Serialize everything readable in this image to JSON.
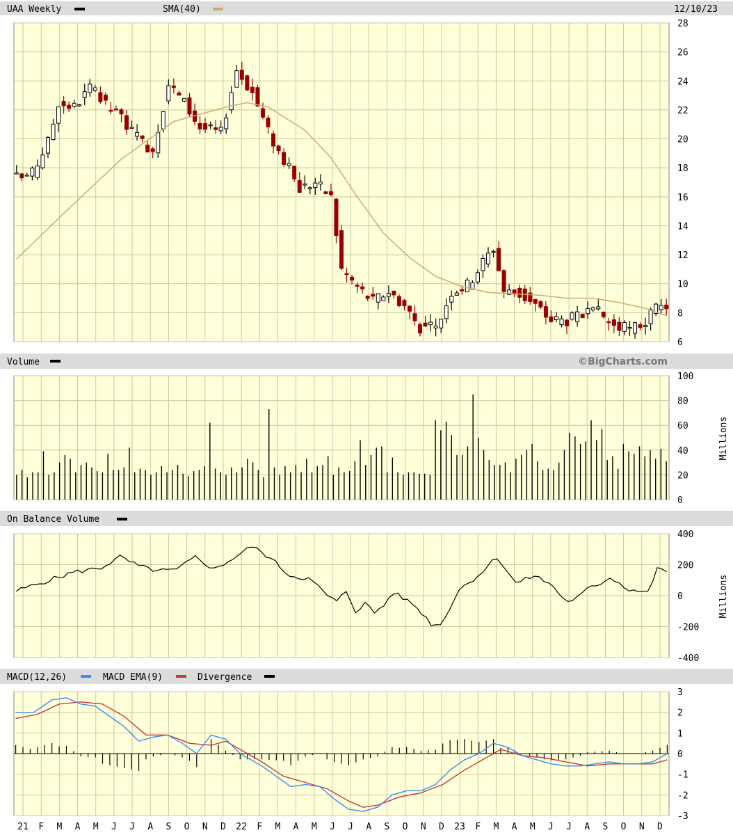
{
  "header": {
    "symbol": "UAA Weekly",
    "sma_label": "SMA(40)",
    "date": "12/10/23",
    "volume_label": "Volume",
    "obv_label": "On Balance Volume",
    "macd_label": "MACD(12,26)",
    "macd_ema_label": "MACD EMA(9)",
    "divergence_label": "Divergence",
    "watermark": "©BigCharts.com",
    "millions_label": "Millions"
  },
  "colors": {
    "panel_bg": "#ffffd9",
    "grid": "#c8c8a0",
    "header_bg": "#dcdcdc",
    "up": "#000000",
    "down": "#990000",
    "sma": "#d2aa6e",
    "macd": "#3c8cf0",
    "ema": "#c03c3c"
  },
  "chart_data": [
    {
      "type": "candlestick",
      "name": "price",
      "title": "UAA Weekly",
      "series_names": [
        "UAA Weekly",
        "SMA(40)"
      ],
      "ylim": [
        6,
        28
      ],
      "yticks": [
        6,
        8,
        10,
        12,
        14,
        16,
        18,
        20,
        22,
        24,
        26,
        28
      ],
      "x_tick_labels": [
        "21",
        "F",
        "M",
        "A",
        "M",
        "J",
        "J",
        "A",
        "S",
        "O",
        "N",
        "D",
        "22",
        "F",
        "M",
        "A",
        "M",
        "J",
        "J",
        "A",
        "S",
        "O",
        "N",
        "D",
        "23",
        "F",
        "M",
        "A",
        "M",
        "J",
        "J",
        "A",
        "S",
        "O",
        "N",
        "D"
      ],
      "close_keypoints": [
        [
          0,
          17.3
        ],
        [
          3,
          17.6
        ],
        [
          6,
          19.8
        ],
        [
          8,
          22.5
        ],
        [
          11,
          22.2
        ],
        [
          14,
          23.5
        ],
        [
          17,
          22.3
        ],
        [
          20,
          21.5
        ],
        [
          23,
          20.0
        ],
        [
          26,
          19.3
        ],
        [
          29,
          23.8
        ],
        [
          32,
          22.5
        ],
        [
          35,
          20.8
        ],
        [
          39,
          20.4
        ],
        [
          42,
          24.8
        ],
        [
          45,
          23.2
        ],
        [
          48,
          20.5
        ],
        [
          51,
          18.5
        ],
        [
          54,
          16.6
        ],
        [
          57,
          17.0
        ],
        [
          60,
          16.0
        ],
        [
          62,
          11.0
        ],
        [
          65,
          9.8
        ],
        [
          68,
          8.8
        ],
        [
          71,
          9.5
        ],
        [
          74,
          8.5
        ],
        [
          77,
          7.0
        ],
        [
          80,
          6.9
        ],
        [
          83,
          9.5
        ],
        [
          86,
          9.9
        ],
        [
          89,
          11.5
        ],
        [
          91,
          12.5
        ],
        [
          93,
          9.5
        ],
        [
          96,
          9.3
        ],
        [
          99,
          8.5
        ],
        [
          102,
          7.5
        ],
        [
          105,
          7.5
        ],
        [
          108,
          7.8
        ],
        [
          111,
          8.0
        ],
        [
          114,
          7.1
        ],
        [
          117,
          6.8
        ],
        [
          120,
          7.4
        ],
        [
          122,
          8.2
        ],
        [
          124,
          8.5
        ]
      ],
      "sma_keypoints": [
        [
          0,
          11.7
        ],
        [
          10,
          15.2
        ],
        [
          20,
          18.6
        ],
        [
          30,
          21.2
        ],
        [
          40,
          22.2
        ],
        [
          44,
          22.5
        ],
        [
          48,
          22.2
        ],
        [
          55,
          20.6
        ],
        [
          60,
          18.7
        ],
        [
          65,
          16.0
        ],
        [
          70,
          13.5
        ],
        [
          75,
          11.8
        ],
        [
          80,
          10.5
        ],
        [
          85,
          9.8
        ],
        [
          90,
          9.4
        ],
        [
          95,
          9.3
        ],
        [
          100,
          9.2
        ],
        [
          105,
          9.0
        ],
        [
          110,
          9.0
        ],
        [
          115,
          8.7
        ],
        [
          120,
          8.3
        ],
        [
          124,
          7.8
        ]
      ]
    },
    {
      "type": "bar",
      "name": "volume",
      "title": "Volume",
      "ylabel": "Millions",
      "ylim": [
        0,
        100
      ],
      "yticks": [
        0,
        20,
        40,
        60,
        80,
        100
      ],
      "values": [
        20,
        24,
        18,
        22,
        22,
        39,
        20,
        22,
        30,
        36,
        33,
        22,
        28,
        30,
        26,
        23,
        22,
        37,
        24,
        24,
        26,
        42,
        22,
        25,
        24,
        20,
        22,
        27,
        22,
        24,
        28,
        21,
        19,
        23,
        24,
        27,
        62,
        25,
        22,
        20,
        26,
        22,
        26,
        33,
        30,
        24,
        18,
        73,
        26,
        20,
        27,
        22,
        28,
        22,
        33,
        22,
        27,
        28,
        35,
        20,
        26,
        22,
        23,
        31,
        48,
        28,
        36,
        42,
        43,
        22,
        34,
        22,
        20,
        22,
        22,
        21,
        21,
        20,
        64,
        56,
        63,
        52,
        36,
        36,
        43,
        85,
        50,
        40,
        32,
        28,
        28,
        30,
        22,
        33,
        36,
        40,
        45,
        31,
        24,
        25,
        24,
        30,
        40,
        54,
        51,
        45,
        47,
        64,
        48,
        57,
        32,
        35,
        25,
        45,
        39,
        37,
        43,
        35,
        40,
        33,
        41,
        31
      ]
    },
    {
      "type": "line",
      "name": "on-balance-volume",
      "title": "On Balance Volume",
      "ylabel": "Millions",
      "ylim": [
        -400,
        400
      ],
      "yticks": [
        -400,
        -200,
        0,
        200,
        400
      ],
      "keypoints": [
        [
          0,
          30
        ],
        [
          6,
          90
        ],
        [
          12,
          150
        ],
        [
          18,
          180
        ],
        [
          22,
          250
        ],
        [
          26,
          190
        ],
        [
          30,
          160
        ],
        [
          34,
          165
        ],
        [
          38,
          250
        ],
        [
          42,
          170
        ],
        [
          46,
          240
        ],
        [
          50,
          320
        ],
        [
          54,
          240
        ],
        [
          58,
          130
        ],
        [
          62,
          110
        ],
        [
          64,
          60
        ],
        [
          66,
          0
        ],
        [
          68,
          -40
        ],
        [
          70,
          30
        ],
        [
          72,
          -100
        ],
        [
          74,
          -50
        ],
        [
          76,
          -110
        ],
        [
          78,
          -60
        ],
        [
          80,
          20
        ],
        [
          84,
          -50
        ],
        [
          86,
          -110
        ],
        [
          88,
          -180
        ],
        [
          90,
          -190
        ],
        [
          94,
          40
        ],
        [
          98,
          130
        ],
        [
          102,
          250
        ],
        [
          106,
          80
        ],
        [
          110,
          130
        ],
        [
          114,
          60
        ],
        [
          116,
          -20
        ],
        [
          118,
          -40
        ],
        [
          122,
          60
        ],
        [
          124,
          80
        ],
        [
          126,
          120
        ],
        [
          130,
          40
        ],
        [
          134,
          20
        ],
        [
          136,
          170
        ],
        [
          138,
          160
        ]
      ]
    },
    {
      "type": "line",
      "name": "macd",
      "title": "MACD(12,26)",
      "series_names": [
        "MACD(12,26)",
        "MACD EMA(9)",
        "Divergence"
      ],
      "ylim": [
        -3,
        3
      ],
      "yticks": [
        -3,
        -2,
        -1,
        0,
        1,
        2,
        3
      ],
      "macd_keypoints": [
        [
          0,
          2.0
        ],
        [
          5,
          2.0
        ],
        [
          10,
          2.6
        ],
        [
          14,
          2.7
        ],
        [
          18,
          2.4
        ],
        [
          22,
          2.3
        ],
        [
          26,
          1.8
        ],
        [
          30,
          1.3
        ],
        [
          34,
          0.6
        ],
        [
          38,
          0.8
        ],
        [
          42,
          0.9
        ],
        [
          46,
          0.5
        ],
        [
          50,
          0.0
        ],
        [
          54,
          0.9
        ],
        [
          58,
          0.7
        ],
        [
          62,
          0.0
        ],
        [
          68,
          -0.6
        ],
        [
          72,
          -1.1
        ],
        [
          76,
          -1.6
        ],
        [
          80,
          -1.5
        ],
        [
          84,
          -1.6
        ],
        [
          88,
          -2.2
        ],
        [
          92,
          -2.7
        ],
        [
          96,
          -2.8
        ],
        [
          100,
          -2.6
        ],
        [
          104,
          -2.0
        ],
        [
          108,
          -1.8
        ],
        [
          112,
          -1.8
        ],
        [
          116,
          -1.5
        ],
        [
          120,
          -0.8
        ],
        [
          124,
          -0.3
        ],
        [
          128,
          0.0
        ],
        [
          132,
          0.5
        ],
        [
          136,
          0.3
        ],
        [
          140,
          -0.1
        ],
        [
          144,
          -0.3
        ],
        [
          148,
          -0.5
        ],
        [
          152,
          -0.6
        ],
        [
          156,
          -0.6
        ],
        [
          160,
          -0.5
        ],
        [
          164,
          -0.4
        ],
        [
          168,
          -0.5
        ],
        [
          172,
          -0.5
        ],
        [
          176,
          -0.4
        ],
        [
          180,
          0.0
        ]
      ],
      "ema_keypoints": [
        [
          0,
          1.7
        ],
        [
          6,
          1.9
        ],
        [
          12,
          2.4
        ],
        [
          18,
          2.5
        ],
        [
          24,
          2.4
        ],
        [
          30,
          1.8
        ],
        [
          36,
          0.9
        ],
        [
          42,
          0.9
        ],
        [
          48,
          0.5
        ],
        [
          54,
          0.4
        ],
        [
          58,
          0.6
        ],
        [
          62,
          0.2
        ],
        [
          68,
          -0.4
        ],
        [
          74,
          -1.1
        ],
        [
          80,
          -1.4
        ],
        [
          86,
          -1.7
        ],
        [
          92,
          -2.3
        ],
        [
          96,
          -2.6
        ],
        [
          100,
          -2.5
        ],
        [
          106,
          -2.1
        ],
        [
          112,
          -1.9
        ],
        [
          118,
          -1.5
        ],
        [
          124,
          -0.8
        ],
        [
          130,
          -0.2
        ],
        [
          134,
          0.2
        ],
        [
          140,
          -0.1
        ],
        [
          146,
          -0.2
        ],
        [
          152,
          -0.4
        ],
        [
          158,
          -0.6
        ],
        [
          164,
          -0.5
        ],
        [
          170,
          -0.5
        ],
        [
          176,
          -0.5
        ],
        [
          180,
          -0.3
        ]
      ]
    }
  ]
}
